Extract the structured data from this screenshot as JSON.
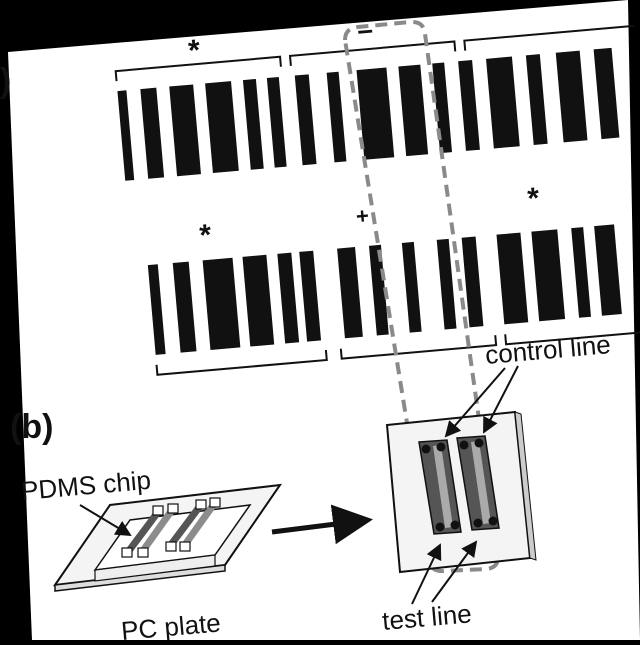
{
  "figure": {
    "panel_a": {
      "label_fragment": ")",
      "top_row_group_marks": [
        "*",
        "–",
        ""
      ],
      "bottom_row_group_marks": [
        "*",
        "+",
        "*"
      ]
    },
    "panel_b": {
      "label": "(b)",
      "pdms_chip_label": "PDMS chip",
      "pc_plate_label": "PC plate",
      "control_line_label": "control line",
      "test_line_label": "test line"
    }
  },
  "colors": {
    "page": "#ffffff",
    "ink": "#111111",
    "dashed_outline": "#8a8a8a",
    "channel_dark": "#555555",
    "channel_mid": "#8c8c8c"
  }
}
